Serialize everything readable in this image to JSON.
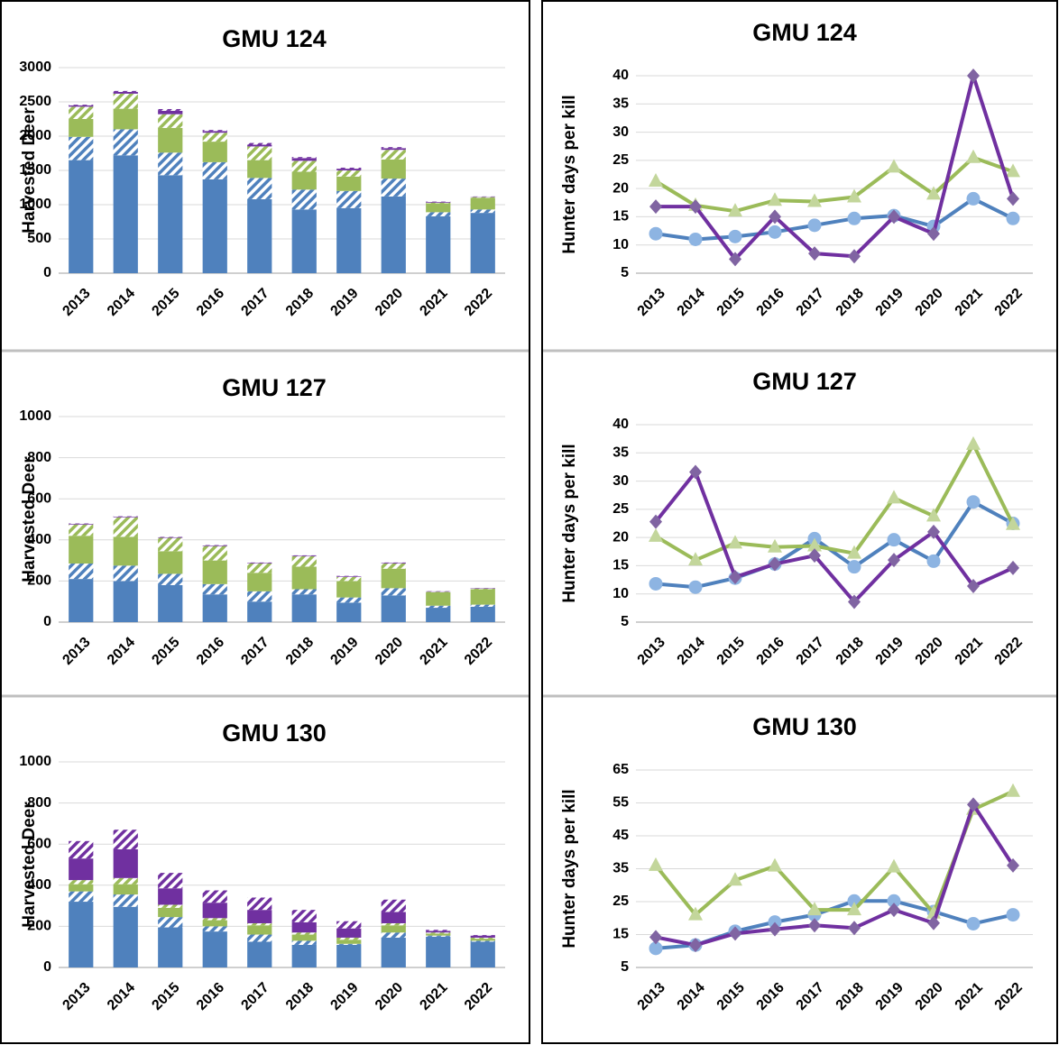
{
  "chart_data": [
    {
      "type": "bar",
      "stacked": true,
      "title": "GMU 124",
      "y_label": "Harvested Deer",
      "categories": [
        "2013",
        "2014",
        "2015",
        "2016",
        "2017",
        "2018",
        "2019",
        "2020",
        "2021",
        "2022"
      ],
      "ylim": [
        0,
        3000
      ],
      "yticks": [
        0,
        500,
        1000,
        1500,
        2000,
        2500,
        3000
      ],
      "grid": true,
      "series": [
        {
          "color": "#4f81bd",
          "hatch": false,
          "values": [
            1650,
            1720,
            1430,
            1370,
            1080,
            930,
            950,
            1120,
            830,
            880
          ]
        },
        {
          "color": "#4f81bd",
          "hatch": true,
          "values": [
            340,
            380,
            330,
            250,
            310,
            290,
            250,
            260,
            60,
            50
          ]
        },
        {
          "color": "#9bbb59",
          "hatch": false,
          "values": [
            260,
            300,
            360,
            300,
            260,
            260,
            210,
            280,
            130,
            170
          ]
        },
        {
          "color": "#9bbb59",
          "hatch": true,
          "values": [
            180,
            220,
            200,
            130,
            200,
            160,
            90,
            140,
            10,
            10
          ]
        },
        {
          "color": "#7030a0",
          "hatch": false,
          "values": [
            20,
            25,
            50,
            25,
            25,
            40,
            25,
            25,
            10,
            5
          ]
        },
        {
          "color": "#7030a0",
          "hatch": true,
          "values": [
            10,
            15,
            25,
            15,
            25,
            15,
            15,
            15,
            5,
            5
          ]
        }
      ]
    },
    {
      "type": "line",
      "title": "GMU 124",
      "y_label": "Hunter days per kill",
      "categories": [
        "2013",
        "2014",
        "2015",
        "2016",
        "2017",
        "2018",
        "2019",
        "2020",
        "2021",
        "2022"
      ],
      "ylim": [
        5,
        40
      ],
      "yticks": [
        5,
        10,
        15,
        20,
        25,
        30,
        35,
        40
      ],
      "grid": true,
      "series": [
        {
          "color": "#4f81bd",
          "marker": "circle",
          "marker_color": "#8db4e2",
          "values": [
            12,
            11,
            11.5,
            12.3,
            13.5,
            14.7,
            15.2,
            13.3,
            18.2,
            14.7
          ]
        },
        {
          "color": "#9bbb59",
          "marker": "triangle",
          "marker_color": "#c3d69b",
          "values": [
            21.3,
            17,
            16,
            17.9,
            17.7,
            18.5,
            23.8,
            19,
            25.5,
            23
          ]
        },
        {
          "color": "#7030a0",
          "marker": "diamond",
          "marker_color": "#8064a2",
          "values": [
            16.8,
            16.8,
            7.5,
            15,
            8.5,
            8,
            15,
            12,
            40,
            18.2
          ]
        }
      ]
    },
    {
      "type": "bar",
      "stacked": true,
      "title": "GMU 127",
      "y_label": "Harvested Deer",
      "categories": [
        "2013",
        "2014",
        "2015",
        "2016",
        "2017",
        "2018",
        "2019",
        "2020",
        "2021",
        "2022"
      ],
      "ylim": [
        0,
        1000
      ],
      "yticks": [
        0,
        200,
        400,
        600,
        800,
        1000
      ],
      "grid": true,
      "series": [
        {
          "color": "#4f81bd",
          "hatch": false,
          "values": [
            210,
            200,
            180,
            135,
            100,
            135,
            95,
            130,
            70,
            75
          ]
        },
        {
          "color": "#4f81bd",
          "hatch": true,
          "values": [
            75,
            75,
            55,
            50,
            50,
            25,
            25,
            35,
            10,
            10
          ]
        },
        {
          "color": "#9bbb59",
          "hatch": false,
          "values": [
            135,
            140,
            110,
            115,
            90,
            110,
            80,
            95,
            65,
            75
          ]
        },
        {
          "color": "#9bbb59",
          "hatch": true,
          "values": [
            55,
            95,
            65,
            70,
            45,
            50,
            20,
            25,
            3,
            3
          ]
        },
        {
          "color": "#7030a0",
          "hatch": false,
          "values": [
            3,
            3,
            3,
            3,
            3,
            3,
            3,
            3,
            2,
            2
          ]
        },
        {
          "color": "#7030a0",
          "hatch": true,
          "values": [
            2,
            2,
            2,
            2,
            2,
            2,
            2,
            2,
            1,
            1
          ]
        }
      ]
    },
    {
      "type": "line",
      "title": "GMU 127",
      "y_label": "Hunter days per kill",
      "categories": [
        "2013",
        "2014",
        "2015",
        "2016",
        "2017",
        "2018",
        "2019",
        "2020",
        "2021",
        "2022"
      ],
      "ylim": [
        5,
        40
      ],
      "yticks": [
        5,
        10,
        15,
        20,
        25,
        30,
        35,
        40
      ],
      "grid": true,
      "series": [
        {
          "color": "#4f81bd",
          "marker": "circle",
          "marker_color": "#8db4e2",
          "values": [
            11.8,
            11.2,
            12.8,
            15.3,
            19.8,
            14.8,
            19.6,
            15.8,
            26.3,
            22.5
          ]
        },
        {
          "color": "#9bbb59",
          "marker": "triangle",
          "marker_color": "#c3d69b",
          "values": [
            20.2,
            16,
            19,
            18.3,
            18.5,
            17.2,
            27,
            23.8,
            36.5,
            22.3
          ]
        },
        {
          "color": "#7030a0",
          "marker": "diamond",
          "marker_color": "#8064a2",
          "values": [
            22.8,
            31.6,
            13,
            15.3,
            16.8,
            8.6,
            16,
            21,
            11.4,
            14.6
          ]
        }
      ]
    },
    {
      "type": "bar",
      "stacked": true,
      "title": "GMU 130",
      "y_label": "Harvested Deer",
      "categories": [
        "2013",
        "2014",
        "2015",
        "2016",
        "2017",
        "2018",
        "2019",
        "2020",
        "2021",
        "2022"
      ],
      "ylim": [
        0,
        1000
      ],
      "yticks": [
        0,
        200,
        400,
        600,
        800,
        1000
      ],
      "grid": true,
      "series": [
        {
          "color": "#4f81bd",
          "hatch": false,
          "values": [
            320,
            295,
            195,
            175,
            125,
            110,
            110,
            145,
            150,
            125
          ]
        },
        {
          "color": "#4f81bd",
          "hatch": true,
          "values": [
            50,
            60,
            50,
            25,
            35,
            20,
            5,
            25,
            5,
            5
          ]
        },
        {
          "color": "#9bbb59",
          "hatch": false,
          "values": [
            35,
            50,
            45,
            30,
            45,
            30,
            20,
            35,
            10,
            10
          ]
        },
        {
          "color": "#9bbb59",
          "hatch": true,
          "values": [
            20,
            30,
            15,
            10,
            10,
            10,
            10,
            10,
            5,
            5
          ]
        },
        {
          "color": "#7030a0",
          "hatch": false,
          "values": [
            105,
            140,
            80,
            75,
            65,
            50,
            45,
            55,
            8,
            10
          ]
        },
        {
          "color": "#7030a0",
          "hatch": true,
          "values": [
            85,
            95,
            75,
            60,
            60,
            60,
            35,
            60,
            5,
            3
          ]
        }
      ]
    },
    {
      "type": "line",
      "title": "GMU 130",
      "y_label": "Hunter days per kill",
      "categories": [
        "2013",
        "2014",
        "2015",
        "2016",
        "2017",
        "2018",
        "2019",
        "2020",
        "2021",
        "2022"
      ],
      "ylim": [
        5,
        65
      ],
      "yticks": [
        5,
        15,
        25,
        35,
        45,
        55,
        65
      ],
      "grid": true,
      "series": [
        {
          "color": "#4f81bd",
          "marker": "circle",
          "marker_color": "#8db4e2",
          "values": [
            10.8,
            11.8,
            16,
            18.8,
            21,
            25.2,
            25.2,
            22,
            18.3,
            21
          ]
        },
        {
          "color": "#9bbb59",
          "marker": "triangle",
          "marker_color": "#c3d69b",
          "values": [
            36,
            21,
            31.5,
            35.8,
            22.5,
            22.5,
            35.5,
            21.5,
            53,
            58.5
          ]
        },
        {
          "color": "#7030a0",
          "marker": "diamond",
          "marker_color": "#8064a2",
          "values": [
            14.2,
            11.8,
            15.3,
            16.6,
            17.8,
            17,
            22.5,
            18.5,
            54.5,
            36
          ]
        }
      ]
    }
  ]
}
